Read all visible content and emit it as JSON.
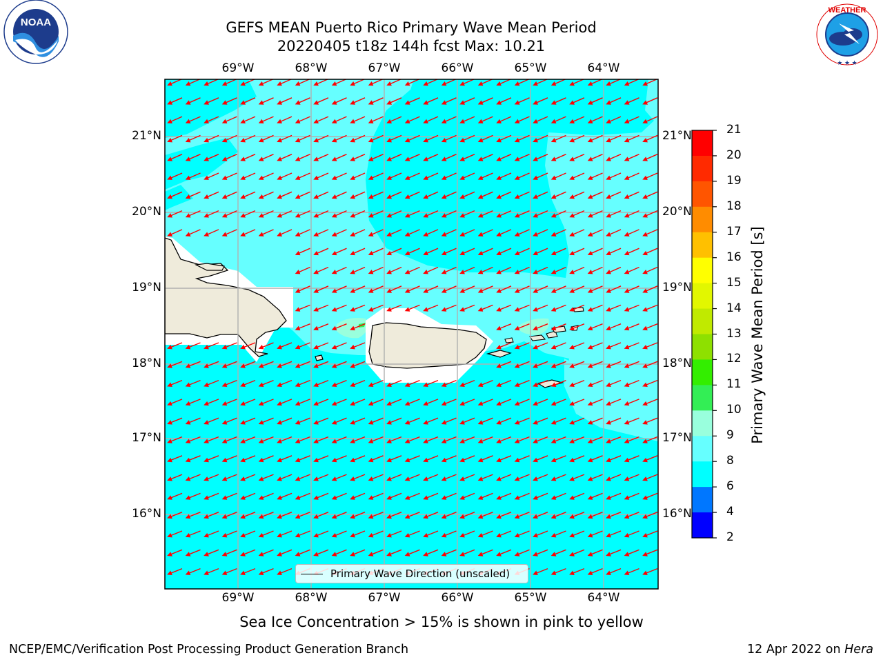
{
  "header": {
    "title_line1": "GEFS MEAN Puerto Rico Primary Wave Mean Period",
    "title_line2": "20220405 t18z 144h fcst   Max: 10.21"
  },
  "logos": {
    "left": "noaa-logo",
    "left_text": "NOAA",
    "left_ring_text": "NATIONAL OCEANIC AND ATMOSPHERIC ADMINISTRATION · U.S. DEPARTMENT OF COMMERCE",
    "right": "nws-logo",
    "right_ring_text": "NATIONAL WEATHER SERVICE"
  },
  "map": {
    "lon_labels": [
      "69°W",
      "68°W",
      "67°W",
      "66°W",
      "65°W",
      "64°W"
    ],
    "lat_labels": [
      "21°N",
      "20°N",
      "19°N",
      "18°N",
      "17°N",
      "16°N"
    ],
    "extent": {
      "lon_min": -70.0,
      "lon_max": -63.25,
      "lat_min": 15.0,
      "lat_max": 21.75
    },
    "arrow_color": "#ff0000",
    "land_color": "#efebdb",
    "legend_label": "Primary Wave Direction (unscaled)"
  },
  "colorbar": {
    "title": "Primary Wave Mean Period [s]",
    "ticks": [
      "21",
      "20",
      "19",
      "18",
      "17",
      "16",
      "15",
      "14",
      "13",
      "12",
      "11",
      "10",
      "9",
      "8",
      "6",
      "4",
      "2"
    ],
    "bands": [
      {
        "from": "20",
        "to": "21",
        "color": "#ff0000"
      },
      {
        "from": "19",
        "to": "20",
        "color": "#ff2a00"
      },
      {
        "from": "18",
        "to": "19",
        "color": "#ff5500"
      },
      {
        "from": "17",
        "to": "18",
        "color": "#ff8c00"
      },
      {
        "from": "16",
        "to": "17",
        "color": "#ffc000"
      },
      {
        "from": "15",
        "to": "16",
        "color": "#ffff00"
      },
      {
        "from": "14",
        "to": "15",
        "color": "#e2f700"
      },
      {
        "from": "13",
        "to": "14",
        "color": "#c0ea00"
      },
      {
        "from": "12",
        "to": "13",
        "color": "#8ee000"
      },
      {
        "from": "11",
        "to": "12",
        "color": "#33ee00"
      },
      {
        "from": "10",
        "to": "11",
        "color": "#33ee55"
      },
      {
        "from": "9",
        "to": "10",
        "color": "#99ffdd"
      },
      {
        "from": "8",
        "to": "9",
        "color": "#66ffff"
      },
      {
        "from": "6",
        "to": "8",
        "color": "#00ffff"
      },
      {
        "from": "4",
        "to": "6",
        "color": "#0077ff"
      },
      {
        "from": "2",
        "to": "4",
        "color": "#0000ff"
      }
    ]
  },
  "notes": {
    "ice": "Sea Ice Concentration > 15% is shown in pink to yellow"
  },
  "footer": {
    "left": "NCEP/EMC/Verification Post Processing Product Generation Branch",
    "right_date": "12 Apr 2022 on",
    "right_host": "Hera"
  }
}
